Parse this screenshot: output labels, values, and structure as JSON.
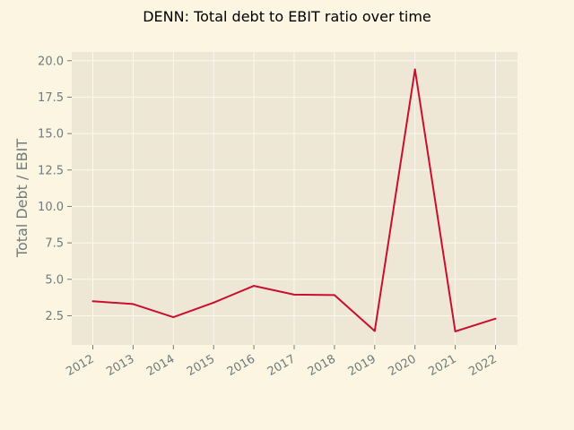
{
  "chart_data": {
    "type": "line",
    "title": "DENN: Total debt to EBIT ratio over time",
    "xlabel": "",
    "ylabel": "Total Debt / EBIT",
    "categories": [
      "2012",
      "2013",
      "2014",
      "2015",
      "2016",
      "2017",
      "2018",
      "2019",
      "2020",
      "2021",
      "2022"
    ],
    "series": [
      {
        "values": [
          3.5,
          3.3,
          2.4,
          3.4,
          4.55,
          3.95,
          3.92,
          1.45,
          19.4,
          1.43,
          2.3
        ]
      }
    ],
    "ylim": [
      0.5,
      20.6
    ],
    "yticks": [
      "2.5",
      "5.0",
      "7.5",
      "10.0",
      "12.5",
      "15.0",
      "17.5",
      "20.0"
    ],
    "grid": true,
    "colors": {
      "page_background": "#fcf5e1",
      "plot_background": "#eee7d5",
      "grid": "#fbf8ef",
      "line": "#c8102e",
      "tick_text": "#6f7c7c",
      "title_text": "#000000"
    }
  }
}
